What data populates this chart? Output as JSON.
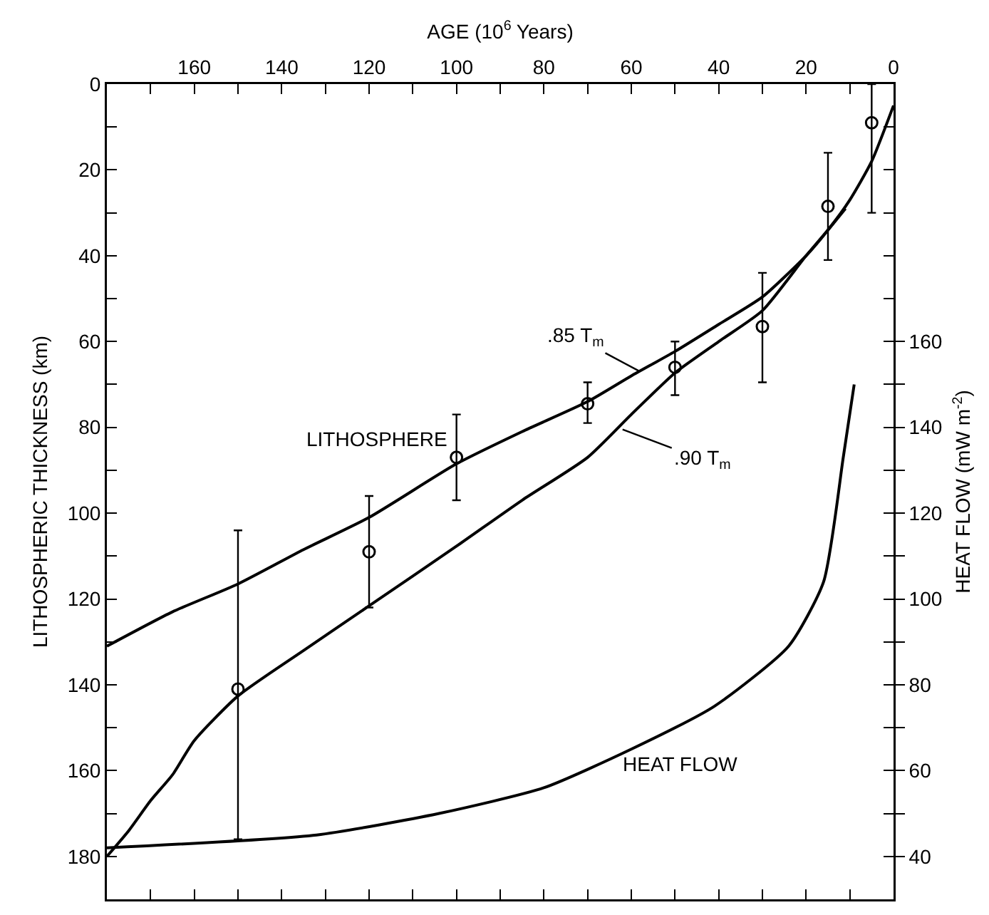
{
  "chart_data": {
    "type": "line",
    "xlabel": "AGE (10$^{6}$ Years)",
    "ylabel": "LITHOSPHERIC THICKNESS (km)",
    "y2label": "HEAT FLOW (mW m$^{-2}$)",
    "xlim": [
      180,
      0
    ],
    "ylim": [
      190,
      0
    ],
    "y2lim": [
      30,
      220
    ],
    "xticks": [
      {
        "value": 180,
        "label": null
      },
      {
        "value": 170,
        "label": null
      },
      160,
      {
        "value": 150,
        "label": null
      },
      140,
      {
        "value": 130,
        "label": null
      },
      120,
      {
        "value": 110,
        "label": null
      },
      100,
      {
        "value": 90,
        "label": null
      },
      80,
      {
        "value": 70,
        "label": null
      },
      60,
      {
        "value": 50,
        "label": null
      },
      40,
      {
        "value": 30,
        "label": null
      },
      20,
      {
        "value": 10,
        "label": null
      },
      0
    ],
    "yticks": [
      0,
      {
        "value": 10,
        "label": null
      },
      20,
      {
        "value": 30,
        "label": null
      },
      40,
      {
        "value": 50,
        "label": null
      },
      60,
      {
        "value": 70,
        "label": null
      },
      80,
      {
        "value": 90,
        "label": null
      },
      100,
      {
        "value": 110,
        "label": null
      },
      120,
      {
        "value": 130,
        "label": null
      },
      140,
      {
        "value": 150,
        "label": null
      },
      160,
      {
        "value": 170,
        "label": null
      },
      180,
      {
        "value": 190,
        "label": null
      }
    ],
    "y2ticks": [
      40,
      {
        "value": 50,
        "label": null
      },
      60,
      {
        "value": 70,
        "label": null
      },
      80,
      {
        "value": 90,
        "label": null
      },
      100,
      {
        "value": 110,
        "label": null
      },
      120,
      {
        "value": 130,
        "label": null
      },
      140,
      {
        "value": 150,
        "label": null
      },
      160
    ],
    "grid": false,
    "series": [
      {
        "type": "line",
        "color": "#000000",
        "marker": "none",
        "x": [
          180,
          165,
          150,
          135,
          120,
          100,
          85,
          70,
          60,
          50,
          40,
          30,
          20,
          15,
          10,
          5,
          0
        ],
        "values": [
          131,
          123,
          116.5,
          108.5,
          101,
          88.5,
          81,
          74,
          68,
          62.3,
          56,
          49.6,
          40,
          34,
          27,
          18,
          5
        ]
      },
      {
        "type": "line",
        "color": "#000000",
        "marker": "none",
        "x": [
          180,
          175,
          170,
          165,
          160,
          150,
          135,
          120,
          100,
          85,
          70,
          60,
          50,
          40,
          30,
          20,
          15,
          11
        ],
        "values": [
          180,
          174,
          167,
          161,
          153,
          142.6,
          132,
          121.6,
          107.7,
          97,
          87,
          77,
          67.3,
          60,
          52.8,
          40,
          34,
          29
        ]
      },
      {
        "type": "line",
        "axis": "y2",
        "color": "#000000",
        "marker": "none",
        "x": [
          180,
          132,
          104,
          80,
          60,
          41,
          24,
          16,
          11.5,
          9
        ],
        "values": [
          42,
          45,
          50,
          56,
          65,
          75,
          89,
          104,
          133,
          150
        ]
      },
      {
        "type": "scatter",
        "color": "#000000",
        "marker": "circle",
        "x": [
          150,
          120,
          100,
          70,
          50,
          30,
          15,
          5
        ],
        "values": [
          141,
          109,
          87,
          74.5,
          66,
          56.5,
          28.5,
          9
        ],
        "errors": [
          [
            104,
            176
          ],
          [
            96,
            122
          ],
          [
            77,
            97
          ],
          [
            69.5,
            79
          ],
          [
            60,
            72.5
          ],
          [
            44,
            69.5
          ],
          [
            16,
            41
          ],
          [
            0,
            30
          ]
        ]
      }
    ],
    "annotations": [
      "LITHOSPHERE",
      "HEAT FLOW",
      {
        "text": ".85 T$_{m}$",
        "x": 58,
        "y": 67
      },
      {
        "text": ".90 T$_{m}$",
        "x": 62,
        "y": 80.5
      }
    ]
  }
}
